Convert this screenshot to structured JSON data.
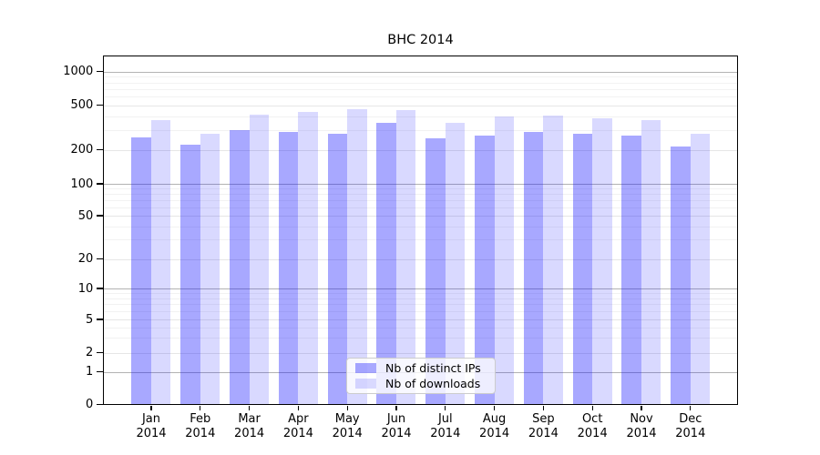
{
  "figure": {
    "title": "BHC 2014"
  },
  "chart_data": {
    "type": "bar",
    "title": "BHC 2014",
    "yscale": "symlog",
    "ylim": [
      0,
      1400
    ],
    "yticks": [
      0,
      1,
      2,
      5,
      10,
      20,
      50,
      100,
      200,
      500,
      1000
    ],
    "grid": true,
    "months": [
      "Jan",
      "Feb",
      "Mar",
      "Apr",
      "May",
      "Jun",
      "Jul",
      "Aug",
      "Sep",
      "Oct",
      "Nov",
      "Dec"
    ],
    "year": "2014",
    "series": [
      {
        "name": "Nb of distinct IPs",
        "color": "#0000ff",
        "opacity": 0.34,
        "displayed_color": "#a9a9ff",
        "values": [
          260,
          225,
          300,
          290,
          280,
          350,
          255,
          270,
          290,
          280,
          270,
          215
        ]
      },
      {
        "name": "Nb of downloads",
        "color": "#0000ff",
        "opacity": 0.15,
        "displayed_color": "#d9d9ff",
        "values": [
          370,
          280,
          415,
          435,
          465,
          455,
          350,
          400,
          405,
          385,
          370,
          280
        ]
      }
    ],
    "legend": {
      "position": "lower center"
    },
    "grid_colors": {
      "decade": "#b3b3b3",
      "labeled": "#e6e6e6",
      "minor": "#f2f2f2"
    }
  }
}
